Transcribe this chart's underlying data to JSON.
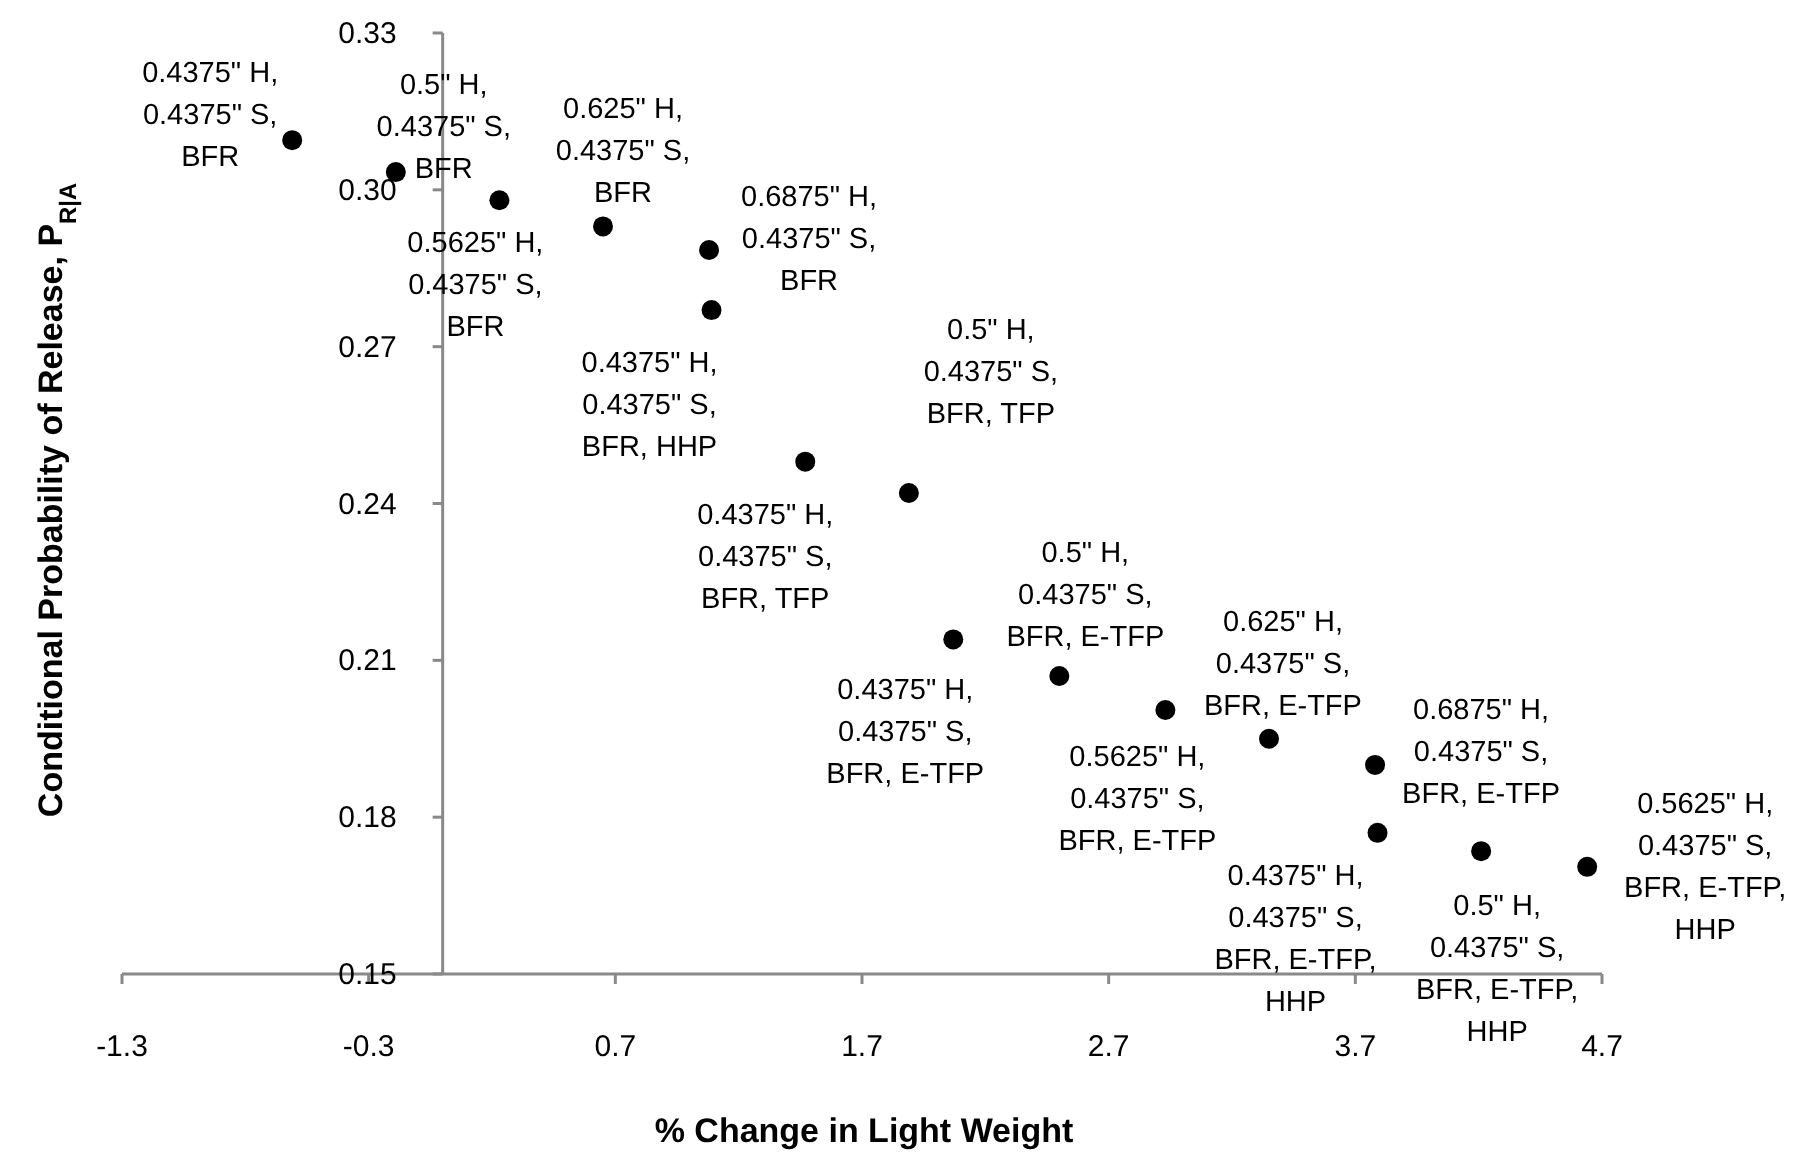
{
  "chart_data": {
    "type": "scatter",
    "xlabel": "% Change in Light Weight",
    "ylabel": "Conditional Probability of Release, P$_{R|A}$",
    "x": [
      -0.61,
      -0.19,
      0.23,
      0.65,
      1.08,
      1.09,
      1.47,
      1.89,
      2.07,
      2.5,
      2.93,
      3.35,
      3.78,
      3.79,
      4.21,
      4.64
    ],
    "values": [
      0.3095,
      0.3034,
      0.298,
      0.293,
      0.2885,
      0.277,
      0.248,
      0.242,
      0.214,
      0.207,
      0.2005,
      0.195,
      0.19,
      0.177,
      0.1735,
      0.1705
    ],
    "color": "#000000",
    "marker": "circle",
    "grid": false,
    "xlim": [
      -1.3,
      4.7
    ],
    "xticks": [
      -1.3,
      -0.3,
      0.7,
      1.7,
      2.7,
      3.7,
      4.7
    ],
    "ylim": [
      0.15,
      0.33
    ],
    "yticks": [
      0.15,
      0.18,
      0.21,
      0.24,
      0.27,
      {
        "value": 0.3,
        "label": "0.30"
      },
      0.33
    ],
    "annotations": [
      {
        "text": "0.4375\" H,\n0.4375\" S,\nBFR",
        "x": -0.61,
        "y": 0.3095
      },
      {
        "text": "0.5\" H,\n0.4375\" S,\nBFR",
        "x": -0.19,
        "y": 0.3034
      },
      {
        "text": "0.5625\" H,\n0.4375\" S,\nBFR",
        "x": 0.23,
        "y": 0.298
      },
      {
        "text": "0.625\" H,\n0.4375\" S,\nBFR",
        "x": 0.65,
        "y": 0.293
      },
      {
        "text": "0.6875\" H,\n0.4375\" S,\nBFR",
        "x": 1.08,
        "y": 0.2885
      },
      {
        "text": "0.4375\" H,\n0.4375\" S,\nBFR, HHP",
        "x": 1.09,
        "y": 0.277
      },
      {
        "text": "0.4375\" H,\n0.4375\" S,\nBFR, TFP",
        "x": 1.47,
        "y": 0.248
      },
      {
        "text": "0.5\" H,\n0.4375\" S,\nBFR, TFP",
        "x": 1.89,
        "y": 0.242
      },
      {
        "text": "0.4375\" H,\n0.4375\" S,\nBFR, E-TFP",
        "x": 2.07,
        "y": 0.214
      },
      {
        "text": "0.5\" H,\n0.4375\" S,\nBFR, E-TFP",
        "x": 2.5,
        "y": 0.207
      },
      {
        "text": "0.5625\" H,\n0.4375\" S,\nBFR, E-TFP",
        "x": 2.93,
        "y": 0.2005
      },
      {
        "text": "0.625\" H,\n0.4375\" S,\nBFR, E-TFP",
        "x": 3.35,
        "y": 0.195
      },
      {
        "text": "0.6875\" H,\n0.4375\" S,\nBFR, E-TFP",
        "x": 3.78,
        "y": 0.19
      },
      {
        "text": "0.4375\" H,\n0.4375\" S,\nBFR, E-TFP,\nHHP",
        "x": 3.79,
        "y": 0.177
      },
      {
        "text": "0.5\" H,\n0.4375\" S,\nBFR, E-TFP,\nHHP",
        "x": 4.21,
        "y": 0.1735
      },
      {
        "text": "0.5625\" H,\n0.4375\" S,\nBFR, E-TFP,\nHHP",
        "x": 4.64,
        "y": 0.1705
      }
    ]
  }
}
